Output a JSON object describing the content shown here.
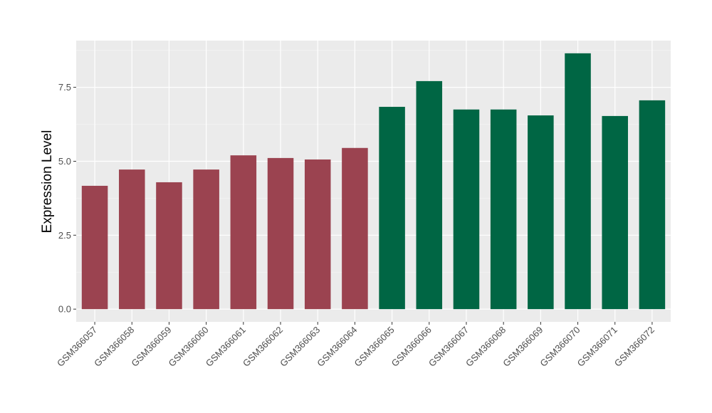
{
  "chart_data": {
    "type": "bar",
    "title": "",
    "xlabel": "",
    "ylabel": "Expression Level",
    "categories": [
      "GSM366057",
      "GSM366058",
      "GSM366059",
      "GSM366060",
      "GSM366061",
      "GSM366062",
      "GSM366063",
      "GSM366064",
      "GSM366065",
      "GSM366066",
      "GSM366067",
      "GSM366068",
      "GSM366069",
      "GSM366070",
      "GSM366071",
      "GSM366072"
    ],
    "values": [
      4.17,
      4.72,
      4.29,
      4.72,
      5.2,
      5.11,
      5.06,
      5.45,
      6.84,
      7.71,
      6.75,
      6.75,
      6.55,
      8.65,
      6.53,
      7.06
    ],
    "bar_colors": [
      "#9b4350",
      "#9b4350",
      "#9b4350",
      "#9b4350",
      "#9b4350",
      "#9b4350",
      "#9b4350",
      "#9b4350",
      "#006644",
      "#006644",
      "#006644",
      "#006644",
      "#006644",
      "#006644",
      "#006644",
      "#006644"
    ],
    "ylim": [
      -0.43,
      9.08
    ],
    "yticks": [
      0,
      2.5,
      5,
      7.5
    ],
    "ytick_labels": [
      "0.0",
      "2.5",
      "5.0",
      "7.5"
    ],
    "grid": true,
    "panel_background": "#ebebeb",
    "legend": "none"
  }
}
